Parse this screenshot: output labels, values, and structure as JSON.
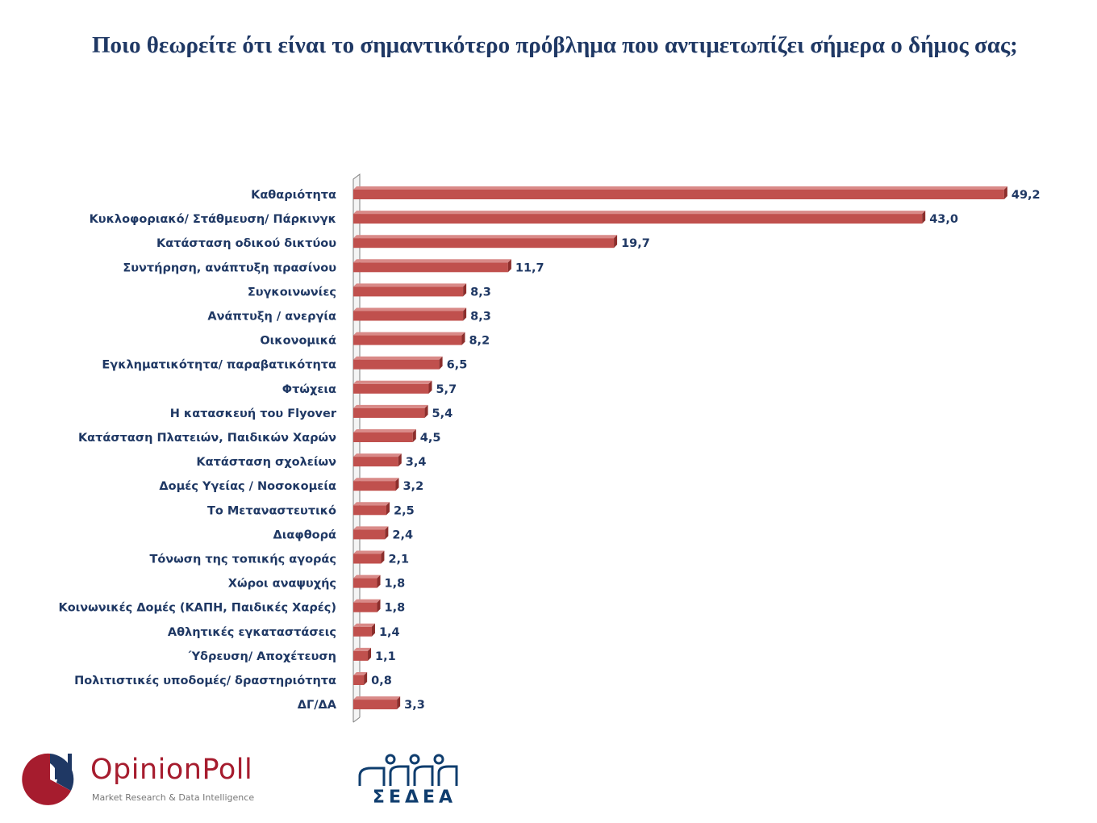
{
  "title": "Ποιο θεωρείτε ότι είναι το σημαντικότερο πρόβλημα που αντιμετωπίζει σήμερα ο δήμος σας;",
  "colors": {
    "bar": "#c0504d",
    "bar_top": "#d98a88",
    "bar_side": "#8c2e2c",
    "text": "#1f3864",
    "axis": "#808080"
  },
  "chart_data": {
    "type": "bar",
    "orientation": "horizontal",
    "style": "3d",
    "grid": false,
    "legend": "none",
    "xlim": [
      0,
      50
    ],
    "categories": [
      "Καθαριότητα",
      "Κυκλοφοριακό/ Στάθμευση/ Πάρκινγκ",
      "Κατάσταση οδικού δικτύου",
      "Συντήρηση, ανάπτυξη πρασίνου",
      "Συγκοινωνίες",
      "Ανάπτυξη / ανεργία",
      "Οικονομικά",
      "Εγκληματικότητα/ παραβατικότητα",
      "Φτώχεια",
      "Η κατασκευή του Flyover",
      "Κατάσταση Πλατειών, Παιδικών Χαρών",
      "Κατάσταση σχολείων",
      "Δομές Υγείας / Νοσοκομεία",
      "Το Μεταναστευτικό",
      "Διαφθορά",
      "Τόνωση της τοπικής αγοράς",
      "Χώροι αναψυχής",
      "Κοινωνικές Δομές (ΚΑΠΗ, Παιδικές Χαρές)",
      "Αθλητικές εγκαταστάσεις",
      "Ύδρευση/ Αποχέτευση",
      "Πολιτιστικές υποδομές/ δραστηριότητα",
      "ΔΓ/ΔΑ"
    ],
    "values": [
      49.2,
      43.0,
      19.7,
      11.7,
      8.3,
      8.3,
      8.2,
      6.5,
      5.7,
      5.4,
      4.5,
      3.4,
      3.2,
      2.5,
      2.4,
      2.1,
      1.8,
      1.8,
      1.4,
      1.1,
      0.8,
      3.3
    ],
    "value_labels": [
      "49,2",
      "43,0",
      "19,7",
      "11,7",
      "8,3",
      "8,3",
      "8,2",
      "6,5",
      "5,7",
      "5,4",
      "4,5",
      "3,4",
      "3,2",
      "2,5",
      "2,4",
      "2,1",
      "1,8",
      "1,8",
      "1,4",
      "1,1",
      "0,8",
      "3,3"
    ]
  },
  "logos": {
    "opinionpoll": {
      "name": "OpinionPoll",
      "tagline": "Market Research & Data Intelligence"
    },
    "sedea": {
      "name": "ΣΕΔΕΑ"
    }
  }
}
